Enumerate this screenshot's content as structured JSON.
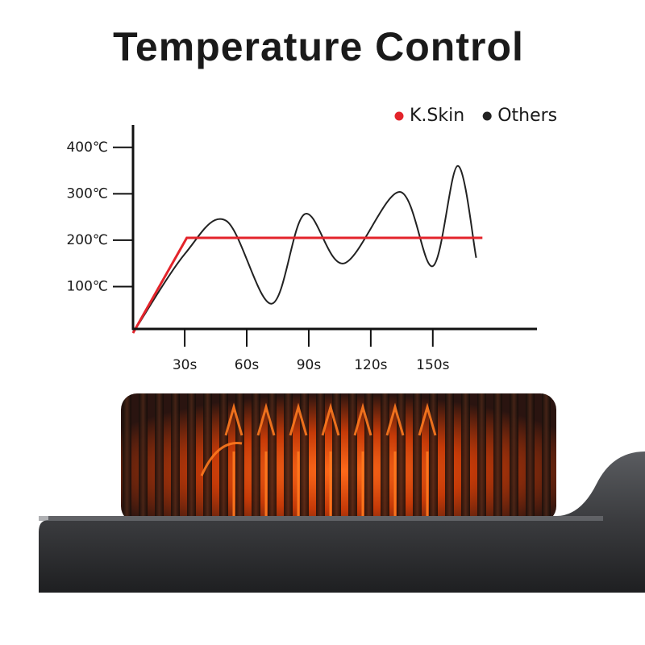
{
  "chart_data": {
    "type": "line",
    "title": "Temperature Control",
    "xlim": [
      5,
      200
    ],
    "ylim": [
      0,
      450
    ],
    "xticks": [
      {
        "value": 30,
        "label": "30s"
      },
      {
        "value": 60,
        "label": "60s"
      },
      {
        "value": 90,
        "label": "90s"
      },
      {
        "value": 120,
        "label": "120s"
      },
      {
        "value": 150,
        "label": "150s"
      }
    ],
    "yticks": [
      {
        "value": 100,
        "label": "100℃"
      },
      {
        "value": 200,
        "label": "200℃"
      },
      {
        "value": 300,
        "label": "300℃"
      },
      {
        "value": 400,
        "label": "400℃"
      }
    ],
    "series": [
      {
        "name": "K.Skin",
        "color": "#e3242b",
        "smooth": false,
        "x": [
          5,
          31,
          174
        ],
        "values": [
          0,
          205,
          205
        ]
      },
      {
        "name": "Others",
        "color": "#222222",
        "smooth": true,
        "x": [
          5,
          30,
          50,
          72,
          88,
          107,
          134,
          150,
          162,
          171
        ],
        "values": [
          0,
          170,
          242,
          63,
          256,
          150,
          304,
          144,
          360,
          162
        ]
      }
    ]
  }
}
